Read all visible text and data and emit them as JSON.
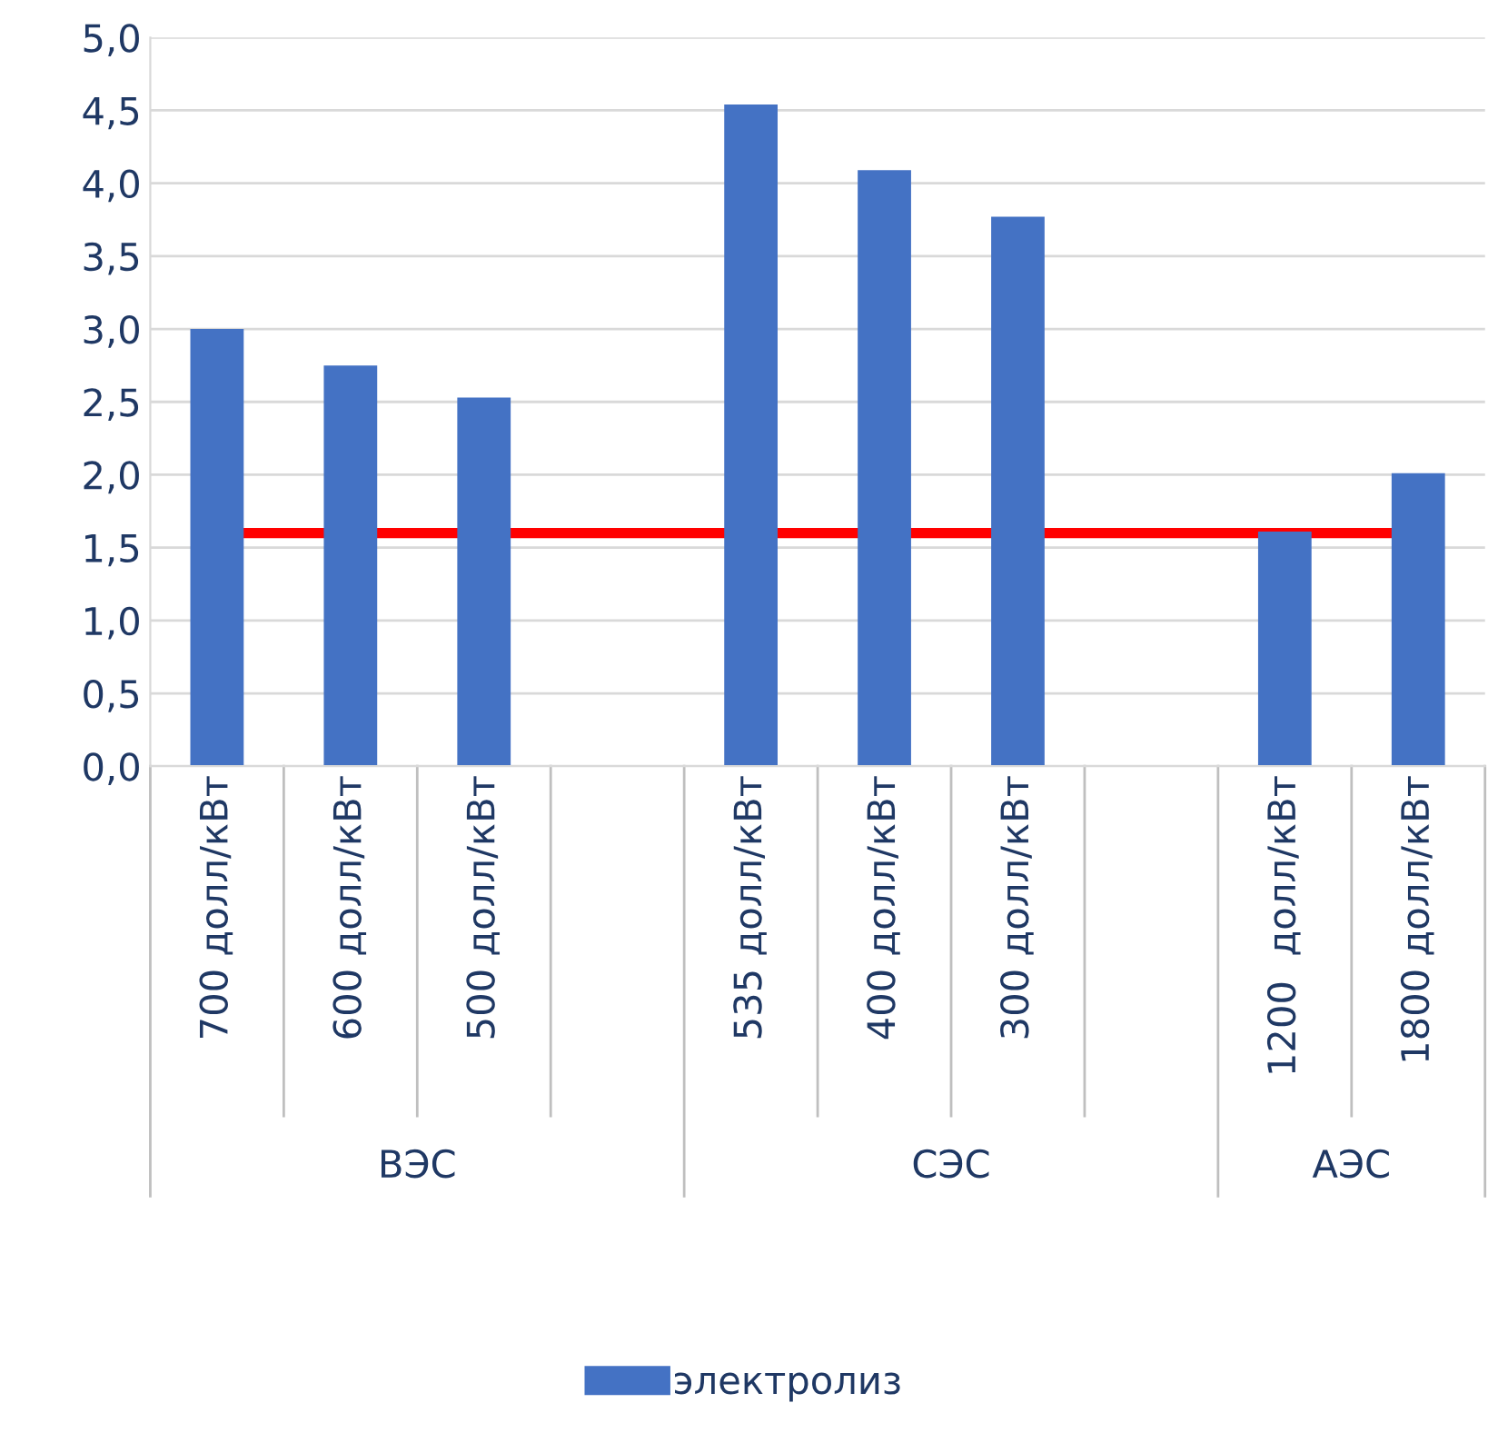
{
  "chart_data": {
    "type": "bar",
    "categories": [
      "700 долл/кВт",
      "600 долл/кВт",
      "500 долл/кВт",
      null,
      "535 долл/кВт",
      "400 долл/кВт",
      "300 долл/кВт",
      null,
      "1200  долл/кВт",
      "1800 долл/кВт"
    ],
    "series": [
      {
        "name": "электролиз",
        "color": "#4472c4",
        "values": [
          3.0,
          2.75,
          2.53,
          null,
          4.54,
          4.09,
          3.77,
          null,
          1.61,
          2.01
        ]
      }
    ],
    "annotations": [
      "ВЭС",
      "СЭС",
      "АЭС"
    ],
    "ylim": [
      0,
      5
    ],
    "yticks": [
      {
        "value": 0,
        "label": "0,0"
      },
      {
        "value": 0.5,
        "label": "0,5"
      },
      {
        "value": 1,
        "label": "1,0"
      },
      {
        "value": 1.5,
        "label": "1,5"
      },
      {
        "value": 2,
        "label": "2,0"
      },
      {
        "value": 2.5,
        "label": "2,5"
      },
      {
        "value": 3,
        "label": "3,0"
      },
      {
        "value": 3.5,
        "label": "3,5"
      },
      {
        "value": 4,
        "label": "4,0"
      },
      {
        "value": 4.5,
        "label": "4,5"
      },
      {
        "value": 5,
        "label": "5,0"
      }
    ],
    "ref_lines": [
      {
        "axis": "y",
        "value": 1.6,
        "label": null,
        "color": "#ff0000",
        "line_style": "solid"
      }
    ],
    "grid": "y",
    "legend": "bottom"
  }
}
